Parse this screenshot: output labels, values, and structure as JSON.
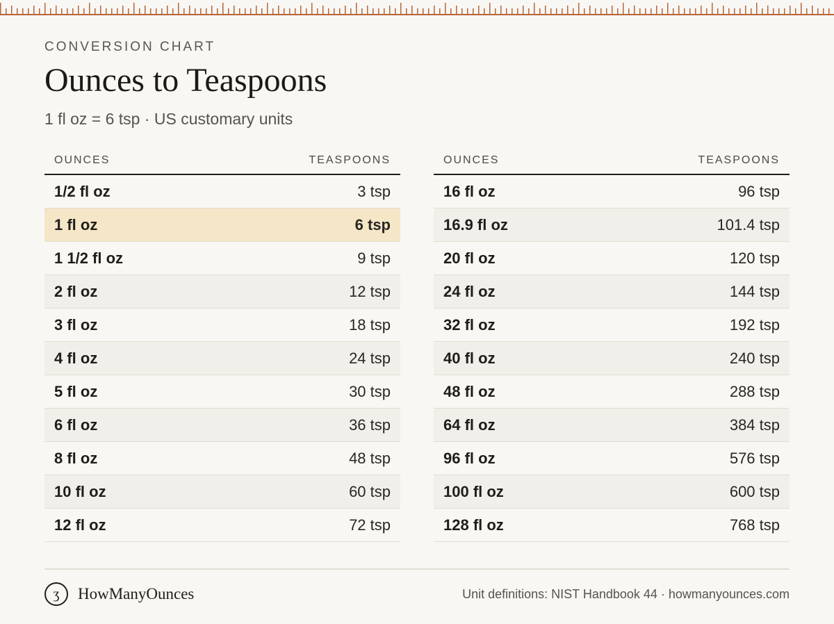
{
  "header": {
    "eyebrow": "CONVERSION CHART",
    "title": "Ounces to Teaspoons",
    "subtitle": "1 fl oz = 6 tsp · US customary units"
  },
  "table_left": {
    "col_ounces": "OUNCES",
    "col_teaspoons": "TEASPOONS",
    "rows": [
      {
        "oz": "1/2 fl oz",
        "tsp": "3 tsp"
      },
      {
        "oz": "1 fl oz",
        "tsp": "6 tsp"
      },
      {
        "oz": "1 1/2 fl oz",
        "tsp": "9 tsp"
      },
      {
        "oz": "2 fl oz",
        "tsp": "12 tsp"
      },
      {
        "oz": "3 fl oz",
        "tsp": "18 tsp"
      },
      {
        "oz": "4 fl oz",
        "tsp": "24 tsp"
      },
      {
        "oz": "5 fl oz",
        "tsp": "30 tsp"
      },
      {
        "oz": "6 fl oz",
        "tsp": "36 tsp"
      },
      {
        "oz": "8 fl oz",
        "tsp": "48 tsp"
      },
      {
        "oz": "10 fl oz",
        "tsp": "60 tsp"
      },
      {
        "oz": "12 fl oz",
        "tsp": "72 tsp"
      }
    ]
  },
  "table_right": {
    "col_ounces": "OUNCES",
    "col_teaspoons": "TEASPOONS",
    "rows": [
      {
        "oz": "16 fl oz",
        "tsp": "96 tsp"
      },
      {
        "oz": "16.9 fl oz",
        "tsp": "101.4 tsp"
      },
      {
        "oz": "20 fl oz",
        "tsp": "120 tsp"
      },
      {
        "oz": "24 fl oz",
        "tsp": "144 tsp"
      },
      {
        "oz": "32 fl oz",
        "tsp": "192 tsp"
      },
      {
        "oz": "40 fl oz",
        "tsp": "240 tsp"
      },
      {
        "oz": "48 fl oz",
        "tsp": "288 tsp"
      },
      {
        "oz": "64 fl oz",
        "tsp": "384 tsp"
      },
      {
        "oz": "96 fl oz",
        "tsp": "576 tsp"
      },
      {
        "oz": "100 fl oz",
        "tsp": "600 tsp"
      },
      {
        "oz": "128 fl oz",
        "tsp": "768 tsp"
      }
    ]
  },
  "footer": {
    "logo_glyph": "ʒ",
    "logo_icon": "brand-logo-icon",
    "brand": "HowManyOunces",
    "credit": "Unit definitions: NIST Handbook 44 · howmanyounces.com"
  },
  "colors": {
    "accent": "#b5653a",
    "highlight_row": "#f4e6c7",
    "alt_row": "#f1efe9",
    "background": "#f8f7f3"
  }
}
